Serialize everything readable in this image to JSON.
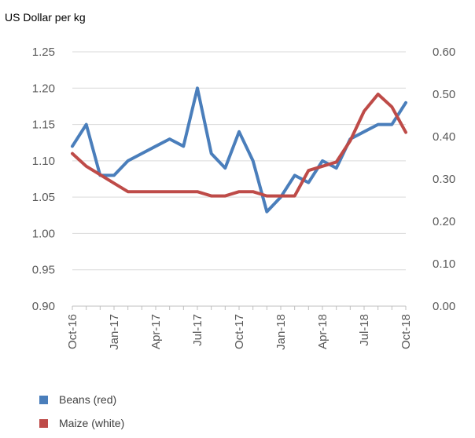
{
  "chart_data": {
    "type": "line",
    "unit_label": "US Dollar per kg",
    "x": [
      "Oct-16",
      "Nov-16",
      "Dec-16",
      "Jan-17",
      "Feb-17",
      "Mar-17",
      "Apr-17",
      "May-17",
      "Jun-17",
      "Jul-17",
      "Aug-17",
      "Sep-17",
      "Oct-17",
      "Nov-17",
      "Dec-17",
      "Jan-18",
      "Feb-18",
      "Mar-18",
      "Apr-18",
      "May-18",
      "Jun-18",
      "Jul-18",
      "Aug-18",
      "Sep-18",
      "Oct-18"
    ],
    "x_tick_labels": [
      "Oct-16",
      "Jan-17",
      "Apr-17",
      "Jul-17",
      "Oct-17",
      "Jan-18",
      "Apr-18",
      "Jul-18",
      "Oct-18"
    ],
    "y_left": {
      "min": 0.9,
      "max": 1.25,
      "ticks": [
        "0.90",
        "0.95",
        "1.00",
        "1.05",
        "1.10",
        "1.15",
        "1.20",
        "1.25"
      ]
    },
    "y_right": {
      "min": 0.0,
      "max": 0.6,
      "ticks": [
        "0.00",
        "0.10",
        "0.20",
        "0.30",
        "0.40",
        "0.50",
        "0.60"
      ]
    },
    "grid": true,
    "legend_position": "bottom-left",
    "series": [
      {
        "name": "Beans (red)",
        "axis": "left",
        "color": "#4A7EBB",
        "values": [
          1.12,
          1.15,
          1.08,
          1.08,
          1.1,
          1.11,
          1.12,
          1.13,
          1.12,
          1.2,
          1.11,
          1.09,
          1.14,
          1.1,
          1.03,
          1.05,
          1.08,
          1.07,
          1.1,
          1.09,
          1.13,
          1.14,
          1.15,
          1.15,
          1.18
        ]
      },
      {
        "name": "Maize (white)",
        "axis": "right",
        "color": "#BE4B48",
        "values": [
          0.36,
          0.33,
          0.31,
          0.29,
          0.27,
          0.27,
          0.27,
          0.27,
          0.27,
          0.27,
          0.26,
          0.26,
          0.27,
          0.27,
          0.26,
          0.26,
          0.26,
          0.32,
          0.33,
          0.34,
          0.39,
          0.46,
          0.5,
          0.47,
          0.41
        ]
      }
    ]
  }
}
